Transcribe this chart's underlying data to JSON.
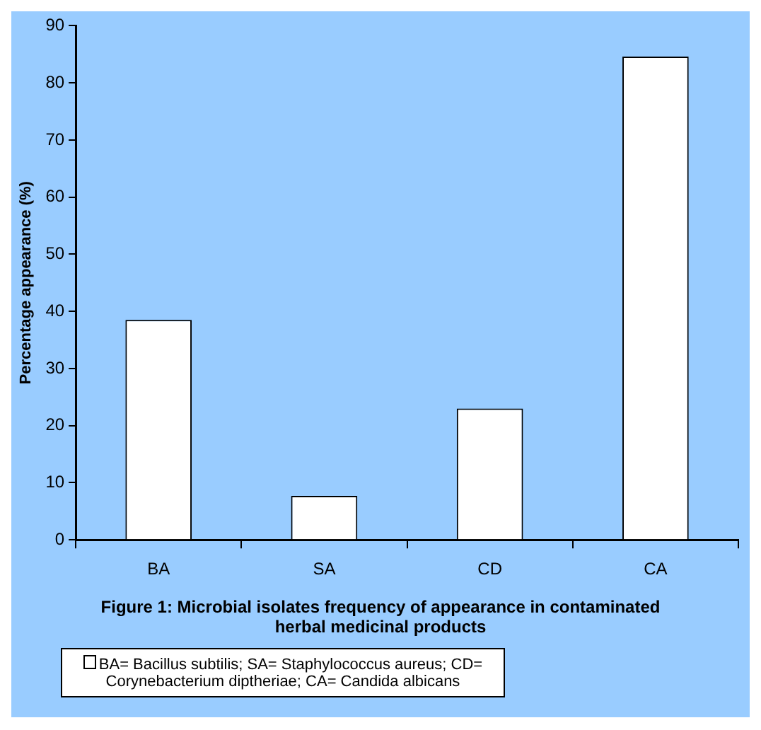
{
  "chart_data": {
    "type": "bar",
    "title": "Figure 1: Microbial isolates frequency of appearance in contaminated herbal medicinal products",
    "ylabel": "Percentage appearance (%)",
    "categories": [
      "BA",
      "SA",
      "CD",
      "CA"
    ],
    "series": [
      {
        "name": "BA= Bacillus subtilis; SA= Staphylococcus aureus; CD= Corynebacterium diptheriae; CA= Candida albicans",
        "color": "#ffffff",
        "values": [
          38.5,
          7.7,
          23,
          84.6
        ]
      }
    ],
    "ylim": [
      0,
      90
    ],
    "yticks": [
      0,
      10,
      20,
      30,
      40,
      50,
      60,
      70,
      80,
      90
    ],
    "grid": false,
    "legend": "bottom"
  }
}
